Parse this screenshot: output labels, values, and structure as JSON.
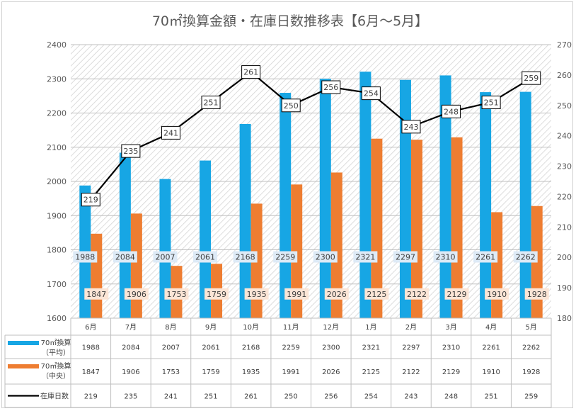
{
  "chart_data": {
    "type": "bar",
    "title": "70㎡換算金額・在庫日数推移表【6月～5月】",
    "categories": [
      "6月",
      "7月",
      "8月",
      "9月",
      "10月",
      "11月",
      "12月",
      "1月",
      "2月",
      "3月",
      "4月",
      "5月"
    ],
    "series": [
      {
        "name": "70㎡換算（平均）",
        "name_lines": [
          "70㎡換算",
          "（平均）"
        ],
        "type": "bar",
        "axis": "left",
        "color": "#17a6e4",
        "values": [
          1988,
          2084,
          2007,
          2061,
          2168,
          2259,
          2300,
          2321,
          2297,
          2310,
          2261,
          2262
        ]
      },
      {
        "name": "70㎡換算（中央）",
        "name_lines": [
          "70㎡換算",
          "（中央）"
        ],
        "type": "bar",
        "axis": "left",
        "color": "#ee7d31",
        "values": [
          1847,
          1906,
          1753,
          1759,
          1935,
          1991,
          2026,
          2125,
          2122,
          2129,
          1910,
          1928
        ]
      },
      {
        "name": "在庫日数",
        "name_lines": [
          "在庫日数"
        ],
        "type": "line",
        "axis": "right",
        "color": "#000000",
        "values": [
          219,
          235,
          241,
          251,
          261,
          250,
          256,
          254,
          243,
          248,
          251,
          259
        ]
      }
    ],
    "y_left": {
      "min": 1600,
      "max": 2400,
      "ticks": [
        1600,
        1700,
        1800,
        1900,
        2000,
        2100,
        2200,
        2300,
        2400
      ]
    },
    "y_right": {
      "min": 180,
      "max": 270,
      "ticks": [
        180,
        190,
        200,
        210,
        220,
        230,
        240,
        250,
        260,
        270
      ]
    },
    "data_table": true,
    "legend": "data-table-rows",
    "grid": true,
    "background": "diagonal-hatch"
  }
}
